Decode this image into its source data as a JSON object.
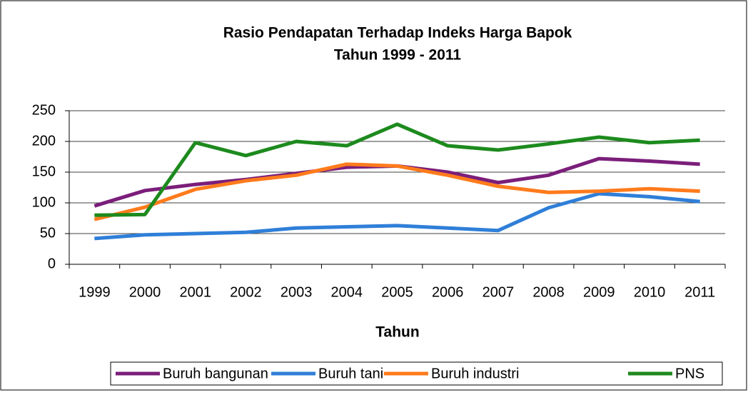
{
  "chart_data": {
    "type": "line",
    "title": [
      "Rasio Pendapatan Terhadap Indeks Harga Bapok",
      "Tahun 1999 - 2011"
    ],
    "x_label": "Tahun",
    "categories": [
      "1999",
      "2000",
      "2001",
      "2002",
      "2003",
      "2004",
      "2005",
      "2006",
      "2007",
      "2008",
      "2009",
      "2010",
      "2011"
    ],
    "series": [
      {
        "name": "Buruh bangunan",
        "color": "#7b1e7a",
        "values": [
          95,
          120,
          130,
          138,
          148,
          158,
          160,
          150,
          133,
          145,
          172,
          168,
          163
        ]
      },
      {
        "name": "Buruh tani",
        "color": "#2f7fd8",
        "values": [
          42,
          48,
          50,
          52,
          59,
          61,
          63,
          59,
          55,
          92,
          115,
          110,
          102
        ]
      },
      {
        "name": "Buruh industri",
        "color": "#ff7b1c",
        "values": [
          73,
          93,
          122,
          136,
          145,
          163,
          160,
          145,
          127,
          117,
          119,
          123,
          119
        ]
      },
      {
        "name": "PNS",
        "color": "#1d8a1d",
        "values": [
          80,
          81,
          198,
          177,
          200,
          193,
          228,
          193,
          186,
          196,
          207,
          198,
          202
        ]
      }
    ],
    "ylim": [
      0,
      250
    ],
    "yticks": [
      0,
      50,
      100,
      150,
      200,
      250
    ],
    "grid": true,
    "legend": "bottom"
  }
}
